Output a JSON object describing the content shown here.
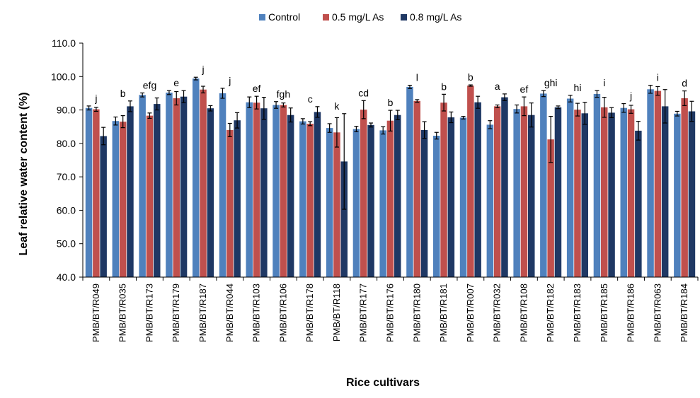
{
  "chart_data": {
    "type": "bar",
    "title": "",
    "xlabel": "Rice cultivars",
    "ylabel": "Leaf relative water content (%)",
    "ylim": [
      40,
      110
    ],
    "yticks": [
      "40.0",
      "50.0",
      "60.0",
      "70.0",
      "80.0",
      "90.0",
      "100.0",
      "110.0"
    ],
    "legend_position": "top-center",
    "categories": [
      "PMB/BT/R049",
      "PMB/BT/R035",
      "PMB/BT/R173",
      "PMB/BT/R179",
      "PMB/BT/R187",
      "PMB/BT/R044",
      "PMB/BT/R103",
      "PMB/BT/R106",
      "PMB/BT/R178",
      "PMB/BT/R118",
      "PMB/BT/R177",
      "PMB/BT/R176",
      "PMB/BT/R180",
      "PMB/BT/R181",
      "PMB/BT/R007",
      "PMB/BT/R032",
      "PMB/BT/R108",
      "PMB/BT/R182",
      "PMB/BT/R183",
      "PMB/BT/R185",
      "PMB/BT/R186",
      "PMB/BT/R063",
      "PMB/BT/R184"
    ],
    "significance_letters": [
      "j",
      "b",
      "efg",
      "e",
      "j",
      "j",
      "ef",
      "fgh",
      "c",
      "k",
      "cd",
      "b",
      "l",
      "b",
      "b",
      "a",
      "ef",
      "ghi",
      "hi",
      "i",
      "j",
      "i",
      "d"
    ],
    "series": [
      {
        "name": "Control",
        "color": "#4F81BD",
        "values": [
          90.6,
          86.7,
          94.5,
          95.2,
          99.4,
          95.0,
          92.3,
          91.5,
          86.6,
          84.6,
          84.3,
          83.9,
          96.9,
          82.3,
          87.7,
          85.6,
          90.3,
          94.9,
          93.4,
          94.8,
          90.6,
          96.2,
          88.9
        ],
        "errors": [
          0.6,
          1.2,
          0.6,
          0.6,
          0.4,
          1.5,
          1.6,
          1.0,
          0.8,
          1.3,
          0.8,
          1.1,
          0.5,
          1.0,
          0.4,
          1.2,
          1.2,
          0.9,
          1.0,
          1.0,
          1.3,
          1.2,
          0.7
        ]
      },
      {
        "name": "0.5 mg/L As",
        "color": "#C0504D",
        "values": [
          90.2,
          86.5,
          88.3,
          93.5,
          96.1,
          84.0,
          92.2,
          91.5,
          85.9,
          83.3,
          90.1,
          86.8,
          92.7,
          92.2,
          97.3,
          91.1,
          91.1,
          81.2,
          90.1,
          90.8,
          90.2,
          95.7,
          93.5
        ],
        "errors": [
          0.6,
          1.8,
          0.8,
          2.0,
          1.0,
          2.0,
          1.9,
          0.6,
          0.6,
          4.4,
          2.7,
          3.1,
          0.4,
          2.5,
          0.2,
          0.4,
          2.8,
          6.9,
          1.9,
          3.0,
          1.2,
          1.3,
          2.2
        ]
      },
      {
        "name": "0.8 mg/L As",
        "color": "#1F3864",
        "values": [
          82.2,
          91.1,
          91.8,
          94.0,
          90.5,
          86.9,
          90.5,
          88.5,
          89.4,
          74.6,
          85.5,
          88.5,
          84.0,
          87.8,
          92.3,
          93.8,
          88.5,
          90.8,
          89.0,
          89.2,
          83.8,
          91.1,
          89.6
        ],
        "errors": [
          2.6,
          1.6,
          1.8,
          1.8,
          0.8,
          2.3,
          3.3,
          2.1,
          1.6,
          14.3,
          0.6,
          1.4,
          2.5,
          1.6,
          1.8,
          1.0,
          3.6,
          0.4,
          3.3,
          1.5,
          2.8,
          5.0,
          3.0
        ]
      }
    ]
  }
}
